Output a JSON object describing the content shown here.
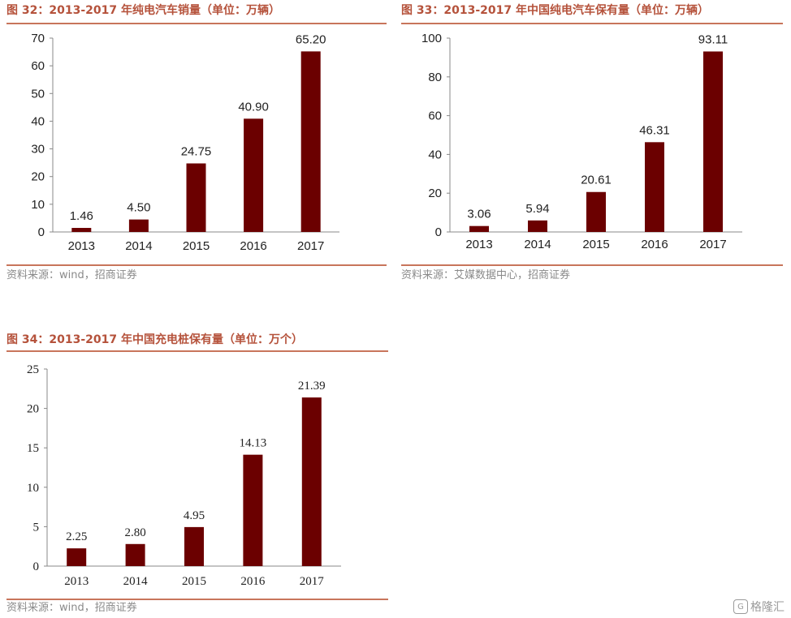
{
  "charts": {
    "c1": {
      "title": "图 32：2013-2017 年纯电汽车销量（单位：万辆）",
      "source": "资料来源：wind，招商证券"
    },
    "c2": {
      "title": "图 33：2013-2017 年中国纯电汽车保有量（单位：万辆）",
      "source": "资料来源：艾媒数据中心，招商证券"
    },
    "c3": {
      "title": "图 34：2013-2017 年中国充电桩保有量（单位：万个）",
      "source": "资料来源：wind，招商证券"
    }
  },
  "watermark": {
    "text": "格隆汇",
    "icon": "g-logo-icon"
  },
  "chart_data": [
    {
      "type": "bar",
      "title": "图 32：2013-2017 年纯电汽车销量（单位：万辆）",
      "categories": [
        "2013",
        "2014",
        "2015",
        "2016",
        "2017"
      ],
      "values": [
        1.46,
        4.5,
        24.75,
        40.9,
        65.2
      ],
      "value_labels": [
        "1.46",
        "4.50",
        "24.75",
        "40.90",
        "65.20"
      ],
      "ylim": [
        0,
        70
      ],
      "yticks": [
        0,
        10,
        20,
        30,
        40,
        50,
        60,
        70
      ],
      "ytick_labels": [
        "0",
        "10",
        "20",
        "30",
        "40",
        "50",
        "60",
        "70"
      ],
      "bar_color": "#6b0000",
      "grid": false
    },
    {
      "type": "bar",
      "title": "图 33：2013-2017 年中国纯电汽车保有量（单位：万辆）",
      "categories": [
        "2013",
        "2014",
        "2015",
        "2016",
        "2017"
      ],
      "values": [
        3.06,
        5.94,
        20.61,
        46.31,
        93.11
      ],
      "value_labels": [
        "3.06",
        "5.94",
        "20.61",
        "46.31",
        "93.11"
      ],
      "ylim": [
        0,
        100
      ],
      "yticks": [
        0,
        20,
        40,
        60,
        80,
        100
      ],
      "ytick_labels": [
        "0",
        "20",
        "40",
        "60",
        "80",
        "100"
      ],
      "bar_color": "#6b0000",
      "grid": false
    },
    {
      "type": "bar",
      "title": "图 34：2013-2017 年中国充电桩保有量（单位：万个）",
      "categories": [
        "2013",
        "2014",
        "2015",
        "2016",
        "2017"
      ],
      "values": [
        2.25,
        2.8,
        4.95,
        14.13,
        21.39
      ],
      "value_labels": [
        "2.25",
        "2.80",
        "4.95",
        "14.13",
        "21.39"
      ],
      "ylim": [
        0,
        25
      ],
      "yticks": [
        0,
        5,
        10,
        15,
        20,
        25
      ],
      "ytick_labels": [
        "0",
        "5",
        "10",
        "15",
        "20",
        "25"
      ],
      "bar_color": "#6b0000",
      "grid": false
    }
  ]
}
